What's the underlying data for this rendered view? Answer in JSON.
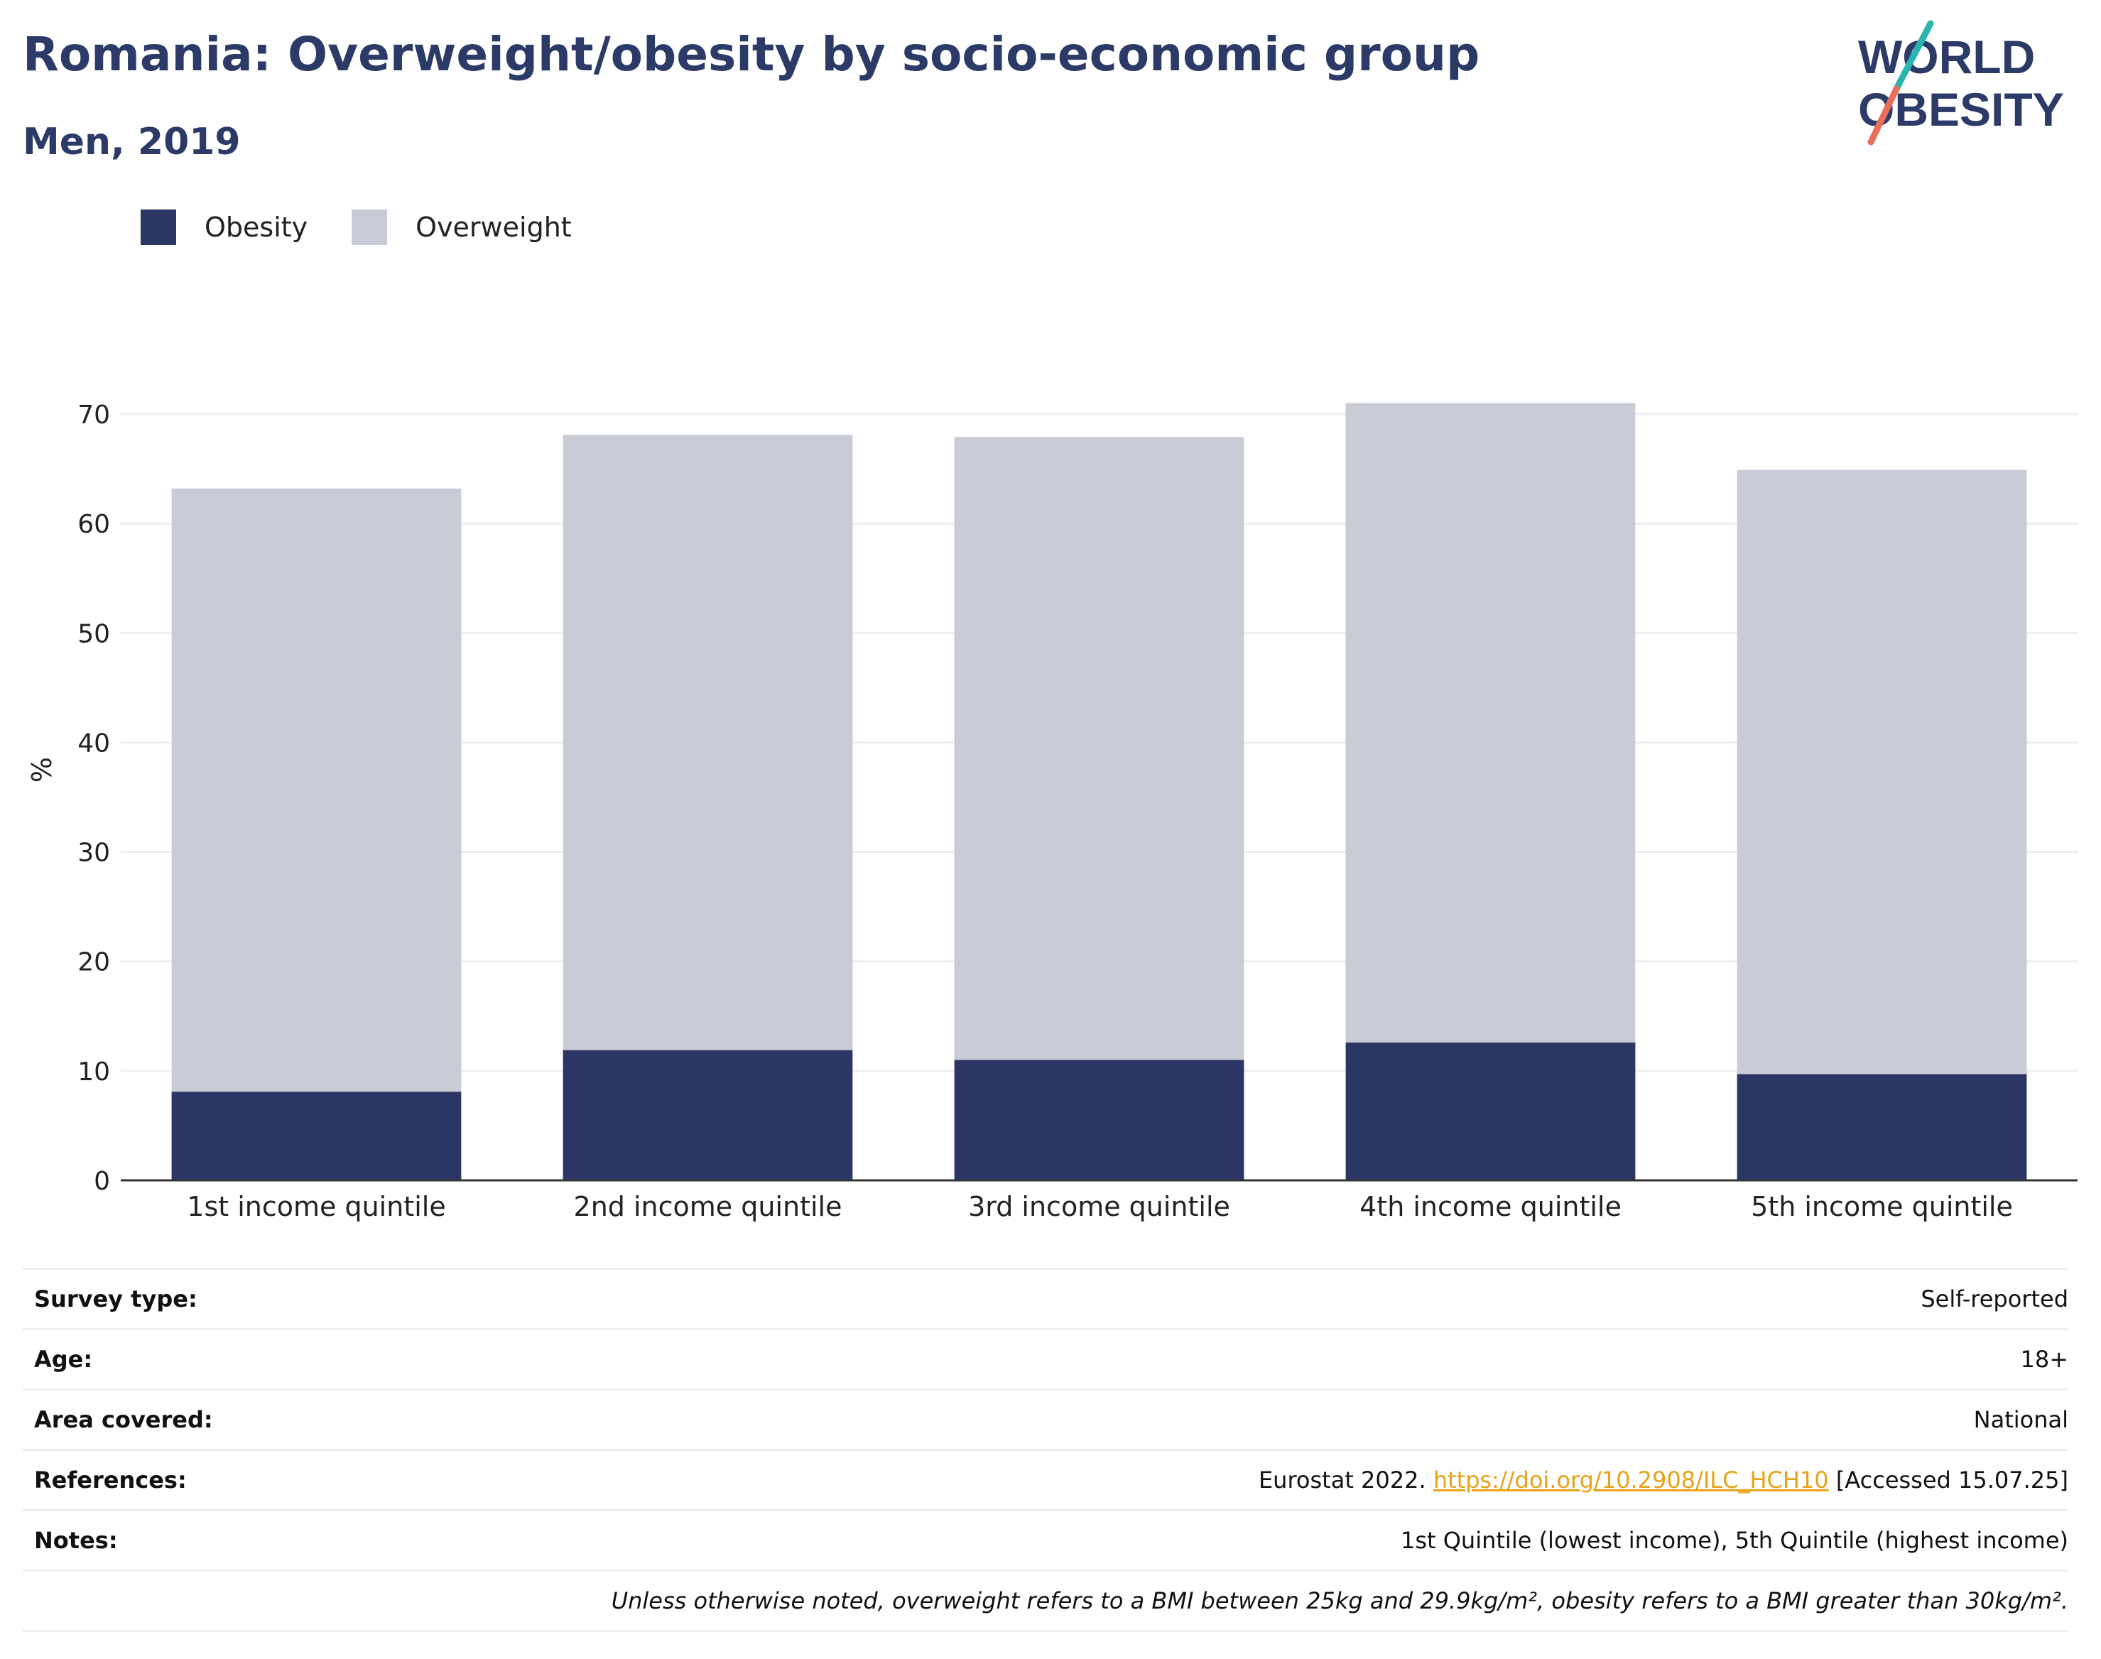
{
  "header": {
    "title": "Romania: Overweight/obesity by socio-economic group",
    "subtitle": "Men, 2019"
  },
  "logo": {
    "line1": "WORLD",
    "line2": "OBESITY"
  },
  "colors": {
    "obesity": "#2b3665",
    "overweight": "#c9cbd7",
    "title": "#2b3a67",
    "link": "#e8a317"
  },
  "chart_data": {
    "type": "bar",
    "stacked": true,
    "categories": [
      "1st income quintile",
      "2nd income quintile",
      "3rd income quintile",
      "4th income quintile",
      "5th income quintile"
    ],
    "series": [
      {
        "name": "Obesity",
        "values": [
          8.1,
          11.9,
          11.0,
          12.6,
          9.7
        ]
      },
      {
        "name": "Overweight",
        "values": [
          55.1,
          56.2,
          56.9,
          58.4,
          55.2
        ]
      }
    ],
    "ylabel": "%",
    "ylim": [
      0,
      75
    ],
    "yticks": [
      0,
      10,
      20,
      30,
      40,
      50,
      60,
      70
    ],
    "grid": true,
    "legend_position": "top-left"
  },
  "info": {
    "survey_label": "Survey type:",
    "survey_value": "Self-reported",
    "age_label": "Age:",
    "age_value": "18+",
    "area_label": "Area covered:",
    "area_value": "National",
    "ref_label": "References:",
    "ref_prefix": "Eurostat 2022. ",
    "ref_link": "https://doi.org/10.2908/ILC_HCH10",
    "ref_suffix": " [Accessed 15.07.25]",
    "notes_label": "Notes:",
    "notes_value": "1st Quintile (lowest income), 5th Quintile (highest income)",
    "footnote": "Unless otherwise noted, overweight refers to a BMI between 25kg and 29.9kg/m², obesity refers to a BMI greater than 30kg/m²."
  }
}
